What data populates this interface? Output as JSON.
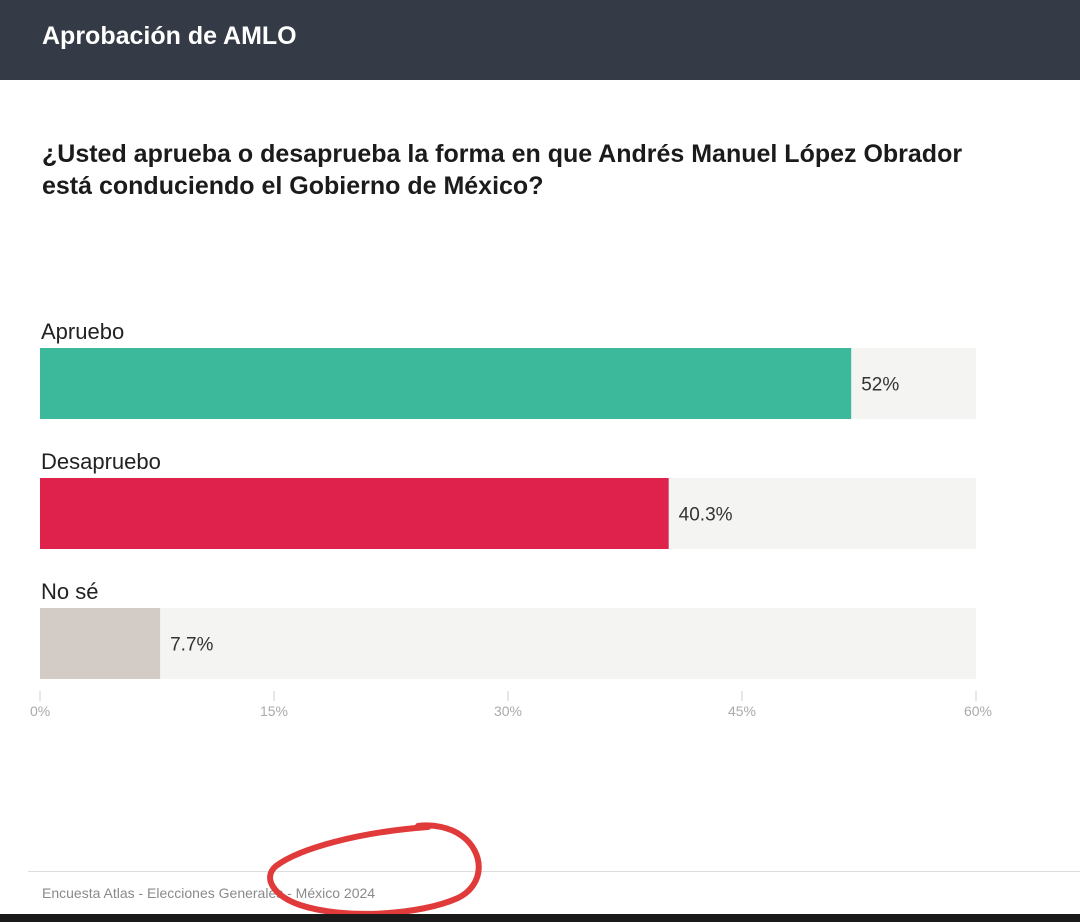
{
  "header": {
    "title": "Aprobación de AMLO"
  },
  "question": "¿Usted aprueba o desaprueba la forma en que Andrés Manuel López Obrador está conduciendo el Gobierno de México?",
  "chart_data": {
    "type": "bar",
    "orientation": "horizontal",
    "categories": [
      "Apruebo",
      "Desapruebo",
      "No sé"
    ],
    "values": [
      52,
      40.3,
      7.7
    ],
    "value_labels": [
      "52%",
      "40.3%",
      "7.7%"
    ],
    "colors": [
      "#3cb89a",
      "#de224b",
      "#d3cbc5"
    ],
    "track_color": "#f4f4f2",
    "xlim": [
      0,
      60
    ],
    "ticks": [
      0,
      15,
      30,
      45,
      60
    ],
    "tick_labels": [
      "0%",
      "15%",
      "30%",
      "45%",
      "60%"
    ],
    "grid": false
  },
  "footer": {
    "source": "Encuesta Atlas - Elecciones Generales - México 2024"
  },
  "annotation": {
    "color": "#e03a3a",
    "shape": "hand-drawn-ellipse"
  }
}
